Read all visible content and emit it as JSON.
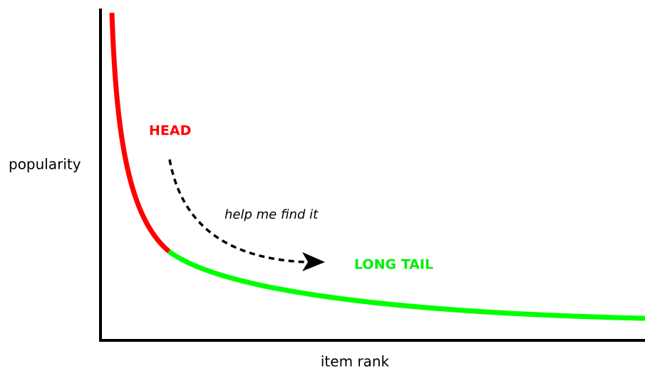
{
  "axes": {
    "y_label": "popularity",
    "x_label": "item rank"
  },
  "labels": {
    "head": "HEAD",
    "tail": "LONG TAIL",
    "arrow": "help me find it"
  }
}
